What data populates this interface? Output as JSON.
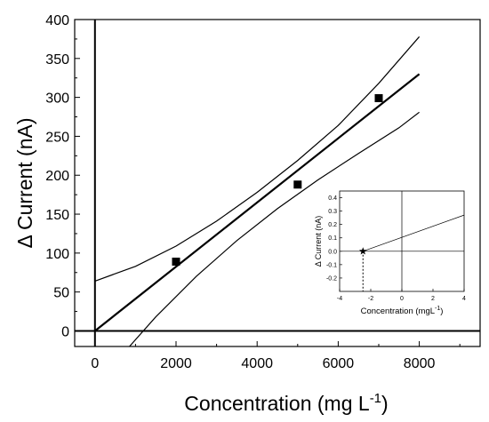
{
  "chart_data": [
    {
      "type": "scatter",
      "xlabel": "Concentration (mg L",
      "xlabel_sup": "-1",
      "xlabel_close": ")",
      "ylabel": "Δ Current (nA)",
      "xlim": [
        -500,
        9500
      ],
      "ylim": [
        -20,
        400
      ],
      "xticks": [
        "0",
        "2000",
        "4000",
        "6000",
        "8000"
      ],
      "yticks": [
        "0",
        "50",
        "100",
        "150",
        "200",
        "250",
        "300",
        "350",
        "400"
      ],
      "xtick_values": [
        0,
        2000,
        4000,
        6000,
        8000
      ],
      "ytick_values": [
        0,
        50,
        100,
        150,
        200,
        250,
        300,
        350,
        400
      ],
      "points": [
        {
          "x": 2000,
          "y": 89
        },
        {
          "x": 5000,
          "y": 188
        },
        {
          "x": 7000,
          "y": 299
        }
      ],
      "fit_line": {
        "x": [
          0,
          8000
        ],
        "y": [
          0,
          330
        ]
      },
      "upper_band": {
        "x": [
          0,
          1000,
          2000,
          3000,
          4000,
          5000,
          6000,
          7000,
          8000
        ],
        "y": [
          64,
          83,
          109,
          141,
          178,
          219,
          264,
          318,
          378
        ]
      },
      "lower_band": {
        "x": [
          850,
          1500,
          2500,
          3500,
          4500,
          5500,
          6500,
          7500,
          8000
        ],
        "y": [
          -20,
          18,
          70,
          116,
          157,
          194,
          228,
          261,
          281
        ]
      },
      "grid": false,
      "legend": "none"
    },
    {
      "type": "line",
      "xlabel": "Concentration (mgL",
      "xlabel_sup": "-1",
      "xlabel_close": ")",
      "ylabel": "Δ Current (nA)",
      "xlim": [
        -4,
        4
      ],
      "ylim": [
        -0.3,
        0.45
      ],
      "xticks": [
        "-4",
        "-2",
        "0",
        "2",
        "4"
      ],
      "yticks": [
        "-0.2",
        "-0.1",
        "0.0",
        "0.1",
        "0.2",
        "0.3",
        "0.4"
      ],
      "xtick_values": [
        -4,
        -2,
        0,
        2,
        4
      ],
      "ytick_values": [
        -0.2,
        -0.1,
        0.0,
        0.1,
        0.2,
        0.3,
        0.4
      ],
      "line": {
        "x": [
          -2.5,
          4
        ],
        "y": [
          0,
          0.27
        ]
      },
      "marker": {
        "x": -2.5,
        "y": 0,
        "symbol": "star"
      },
      "drop_line": {
        "x": -2.5,
        "y_from": 0,
        "y_to": -0.3
      },
      "grid": false,
      "legend": "none"
    }
  ]
}
